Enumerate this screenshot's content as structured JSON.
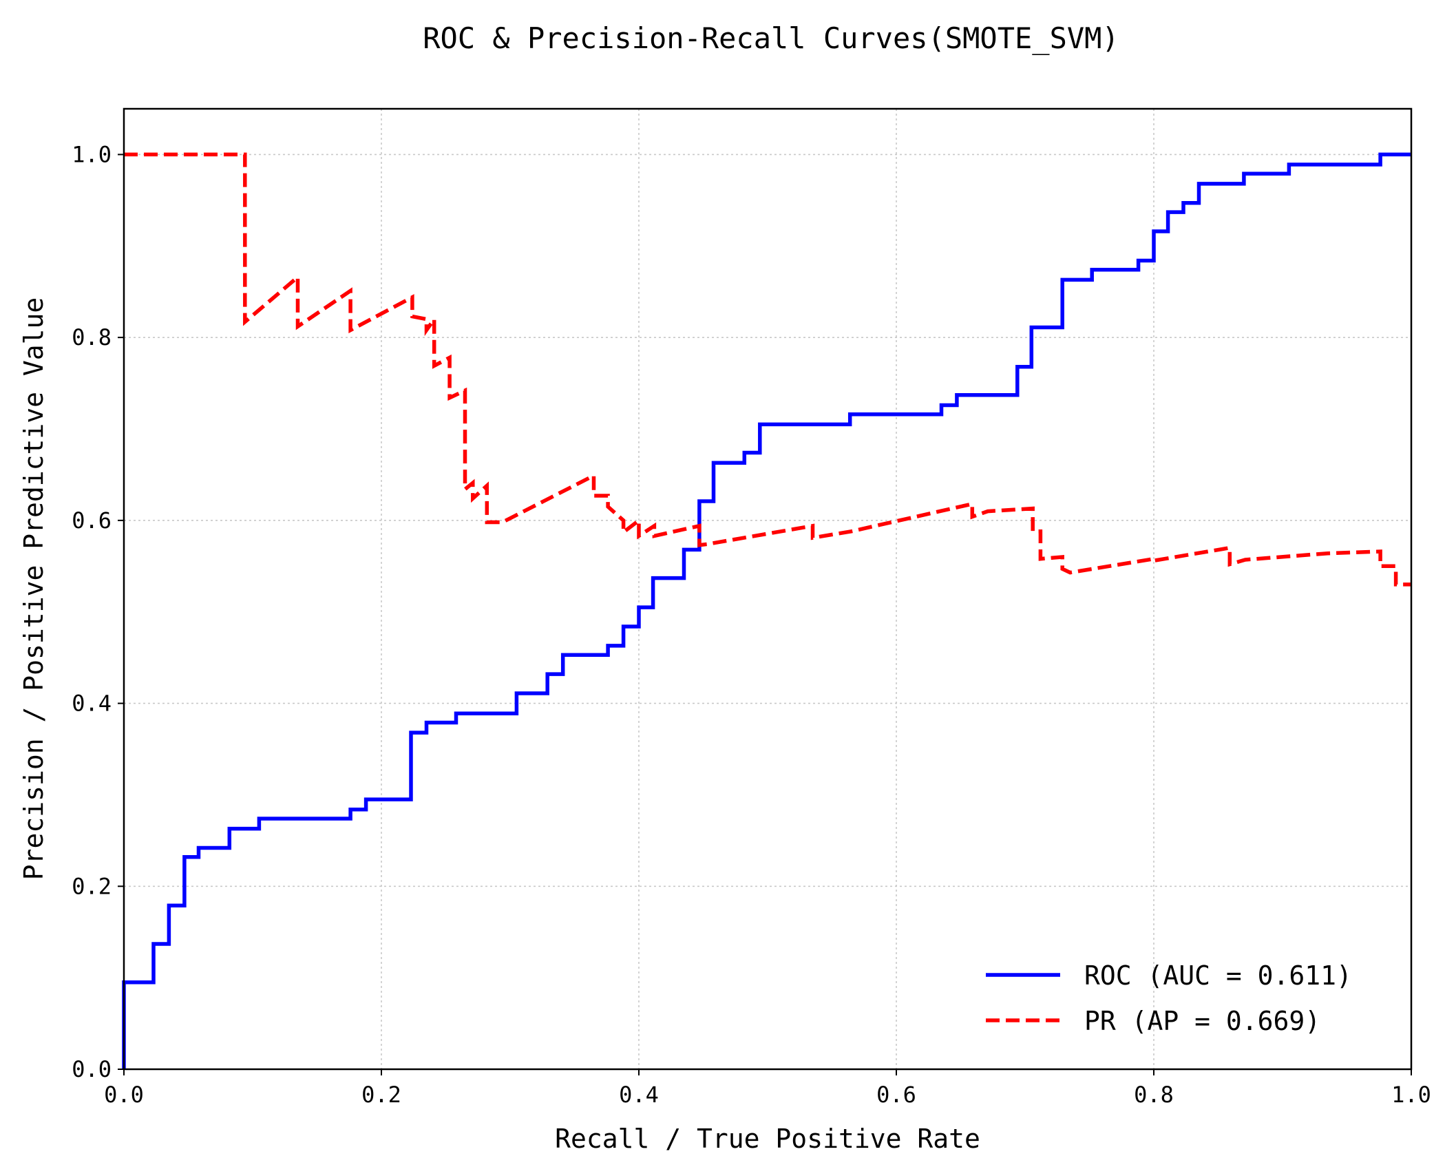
{
  "chart_data": {
    "type": "line",
    "title": "ROC & Precision-Recall Curves(SMOTE_SVM)",
    "xlabel": "Recall / True Positive Rate",
    "ylabel": "Precision / Positive Predictive Value",
    "xlim": [
      0.0,
      1.0
    ],
    "ylim": [
      0.0,
      1.05
    ],
    "xticks": [
      "0.0",
      "0.2",
      "0.4",
      "0.6",
      "0.8",
      "1.0"
    ],
    "yticks": [
      "0.0",
      "0.2",
      "0.4",
      "0.6",
      "0.8",
      "1.0"
    ],
    "grid": true,
    "legend_position": "lower-right",
    "series": [
      {
        "name": "ROC (AUC = 0.611)",
        "color": "#0000ff",
        "dash": "solid",
        "x": [
          0.0,
          0.0,
          0.023,
          0.023,
          0.035,
          0.035,
          0.047,
          0.047,
          0.058,
          0.058,
          0.082,
          0.082,
          0.105,
          0.105,
          0.176,
          0.176,
          0.188,
          0.188,
          0.223,
          0.223,
          0.235,
          0.235,
          0.258,
          0.258,
          0.305,
          0.305,
          0.329,
          0.329,
          0.341,
          0.341,
          0.376,
          0.376,
          0.388,
          0.388,
          0.4,
          0.4,
          0.411,
          0.411,
          0.435,
          0.435,
          0.447,
          0.447,
          0.458,
          0.458,
          0.482,
          0.482,
          0.494,
          0.494,
          0.564,
          0.564,
          0.635,
          0.635,
          0.647,
          0.647,
          0.694,
          0.694,
          0.705,
          0.705,
          0.729,
          0.729,
          0.752,
          0.752,
          0.788,
          0.788,
          0.8,
          0.8,
          0.811,
          0.811,
          0.823,
          0.823,
          0.835,
          0.835,
          0.87,
          0.87,
          0.905,
          0.905,
          0.976,
          0.976,
          1.0
        ],
        "y": [
          0.0,
          0.095,
          0.095,
          0.137,
          0.137,
          0.179,
          0.179,
          0.232,
          0.232,
          0.242,
          0.242,
          0.263,
          0.263,
          0.274,
          0.274,
          0.284,
          0.284,
          0.295,
          0.295,
          0.368,
          0.368,
          0.379,
          0.379,
          0.389,
          0.389,
          0.411,
          0.411,
          0.432,
          0.432,
          0.453,
          0.453,
          0.463,
          0.463,
          0.484,
          0.484,
          0.505,
          0.505,
          0.537,
          0.537,
          0.568,
          0.568,
          0.621,
          0.621,
          0.663,
          0.663,
          0.674,
          0.674,
          0.705,
          0.705,
          0.716,
          0.716,
          0.726,
          0.726,
          0.737,
          0.737,
          0.768,
          0.768,
          0.811,
          0.811,
          0.863,
          0.863,
          0.874,
          0.874,
          0.884,
          0.884,
          0.916,
          0.916,
          0.937,
          0.937,
          0.947,
          0.947,
          0.968,
          0.968,
          0.979,
          0.979,
          0.989,
          0.989,
          1.0,
          1.0
        ]
      },
      {
        "name": "PR (AP = 0.669)",
        "color": "#ff0000",
        "dash": "dashed",
        "x": [
          0.0,
          0.094,
          0.094,
          0.135,
          0.135,
          0.176,
          0.176,
          0.224,
          0.224,
          0.235,
          0.235,
          0.241,
          0.241,
          0.253,
          0.253,
          0.265,
          0.265,
          0.271,
          0.271,
          0.282,
          0.282,
          0.294,
          0.294,
          0.365,
          0.365,
          0.376,
          0.376,
          0.388,
          0.388,
          0.4,
          0.4,
          0.412,
          0.412,
          0.447,
          0.447,
          0.453,
          0.453,
          0.535,
          0.535,
          0.565,
          0.565,
          0.659,
          0.659,
          0.671,
          0.671,
          0.706,
          0.706,
          0.712,
          0.712,
          0.729,
          0.729,
          0.735,
          0.735,
          0.8,
          0.8,
          0.859,
          0.859,
          0.871,
          0.871,
          0.935,
          0.935,
          0.976,
          0.976,
          0.988,
          0.988,
          1.0
        ],
        "y": [
          1.0,
          1.0,
          0.817,
          0.866,
          0.812,
          0.851,
          0.808,
          0.844,
          0.823,
          0.82,
          0.808,
          0.82,
          0.769,
          0.778,
          0.734,
          0.742,
          0.634,
          0.641,
          0.624,
          0.638,
          0.598,
          0.598,
          0.598,
          0.649,
          0.627,
          0.627,
          0.615,
          0.6,
          0.587,
          0.6,
          0.583,
          0.594,
          0.583,
          0.594,
          0.573,
          0.574,
          0.574,
          0.594,
          0.581,
          0.588,
          0.588,
          0.618,
          0.604,
          0.61,
          0.61,
          0.613,
          0.588,
          0.588,
          0.558,
          0.56,
          0.547,
          0.543,
          0.543,
          0.558,
          0.556,
          0.57,
          0.552,
          0.557,
          0.557,
          0.564,
          0.564,
          0.566,
          0.55,
          0.55,
          0.53,
          0.53
        ]
      }
    ]
  }
}
